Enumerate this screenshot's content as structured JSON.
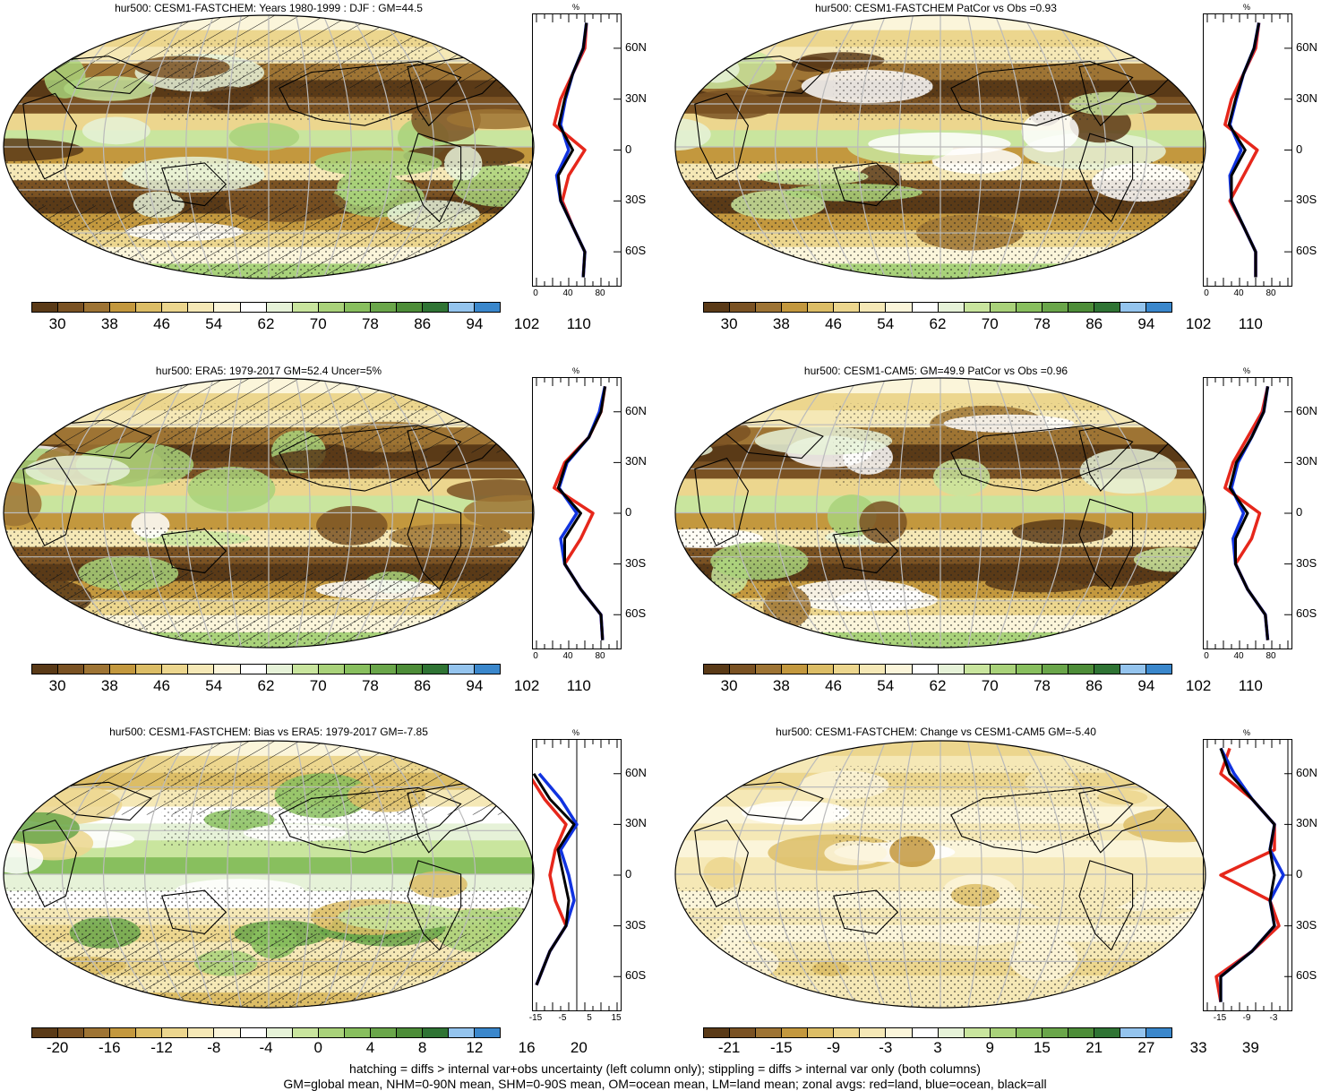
{
  "colors": {
    "abs": [
      "#5a3a17",
      "#7a5223",
      "#9e7434",
      "#c3983e",
      "#dcbd66",
      "#ecd68e",
      "#f5e8b6",
      "#fbf5da",
      "#ffffff",
      "#e6f2d8",
      "#c9e59e",
      "#a9d27a",
      "#88bf5e",
      "#6aa64a",
      "#4d8d38",
      "#2f7434",
      "#94c4ee",
      "#3a87cc"
    ],
    "diff": [
      "#5a3a17",
      "#7a5223",
      "#9e7434",
      "#c3983e",
      "#dcbd66",
      "#ecd68e",
      "#f5e8b6",
      "#fbf5da",
      "#ffffff",
      "#e6f2d8",
      "#c9e59e",
      "#a9d27a",
      "#88bf5e",
      "#6aa64a",
      "#4d8d38",
      "#2f7434",
      "#94c4ee",
      "#3a87cc"
    ],
    "change": [
      "#5a3a17",
      "#7a5223",
      "#9e7434",
      "#c3983e",
      "#dcbd66",
      "#ecd68e",
      "#f5e8b6",
      "#fbf5da",
      "#ffffff",
      "#e6f2d8",
      "#c9e59e",
      "#a9d27a",
      "#88bf5e",
      "#6aa64a",
      "#4d8d38",
      "#2f7434",
      "#94c4ee",
      "#3a87cc"
    ],
    "land": "#e6271b",
    "ocean": "#1133e0",
    "all": "#000000"
  },
  "colorbars": {
    "abs": [
      "30",
      "38",
      "46",
      "54",
      "62",
      "70",
      "78",
      "86",
      "94",
      "102",
      "110"
    ],
    "diff": [
      "-20",
      "-16",
      "-12",
      "-8",
      "-4",
      "0",
      "4",
      "8",
      "12",
      "16",
      "20"
    ],
    "change": [
      "-21",
      "-15",
      "-9",
      "-3",
      "3",
      "9",
      "15",
      "21",
      "27",
      "33",
      "39"
    ]
  },
  "lat_labels": [
    "60N",
    "30N",
    "0",
    "30S",
    "60S"
  ],
  "panels": [
    {
      "id": "p1",
      "title": "hur500: CESM1-FASTCHEM: Years 1980-1999 : DJF : GM=44.5",
      "unit": "%",
      "xticks": [
        "0",
        "40",
        "80"
      ],
      "bar": "abs"
    },
    {
      "id": "p2",
      "title": "hur500: CESM1-FASTCHEM PatCor vs Obs =0.93",
      "unit": "%",
      "xticks": [
        "0",
        "40",
        "80"
      ],
      "bar": "abs"
    },
    {
      "id": "p3",
      "title": "hur500: ERA5: 1979-2017 GM=52.4 Uncer=5%",
      "unit": "%",
      "xticks": [
        "0",
        "40",
        "80"
      ],
      "bar": "abs"
    },
    {
      "id": "p4",
      "title": "hur500: CESM1-CAM5: GM=49.9 PatCor vs Obs =0.96",
      "unit": "%",
      "xticks": [
        "0",
        "40",
        "80"
      ],
      "bar": "abs"
    },
    {
      "id": "p5",
      "title": "hur500: CESM1-FASTCHEM: Bias vs ERA5: 1979-2017 GM=-7.85",
      "unit": "%",
      "xticks": [
        "-15",
        "-5",
        "5",
        "15"
      ],
      "bar": "diff"
    },
    {
      "id": "p6",
      "title": "hur500: CESM1-FASTCHEM: Change vs CESM1-CAM5 GM=-5.40",
      "unit": "%",
      "xticks": [
        "-15",
        "-9",
        "-3"
      ],
      "bar": "change"
    }
  ],
  "footer": {
    "line1": "hatching = diffs > internal var+obs uncertainty (left column only); stippling = diffs > internal var only (both columns)",
    "line2": "GM=global mean, NHM=0-90N mean, SHM=0-90S mean, OM=ocean mean, LM=land mean; zonal avgs: red=land, blue=ocean, black=all"
  },
  "chart_data": [
    {
      "type": "line",
      "title": "hur500: CESM1-FASTCHEM: Years 1980-1999 : DJF : GM=44.5",
      "xlabel": "%",
      "xlim": [
        0,
        100
      ],
      "ylim": [
        -80,
        80
      ],
      "series": [
        {
          "name": "land",
          "y": [
            -75,
            -60,
            -45,
            -30,
            -15,
            0,
            15,
            30,
            45,
            60,
            75
          ],
          "x": [
            58,
            60,
            45,
            32,
            40,
            60,
            22,
            30,
            45,
            60,
            62
          ]
        },
        {
          "name": "ocean",
          "y": [
            -75,
            -60,
            -45,
            -30,
            -15,
            0,
            15,
            30,
            45,
            60,
            75
          ],
          "x": [
            58,
            60,
            45,
            30,
            25,
            40,
            30,
            36,
            45,
            58,
            62
          ]
        },
        {
          "name": "all",
          "y": [
            -75,
            -60,
            -45,
            -30,
            -15,
            0,
            15,
            30,
            45,
            60,
            75
          ],
          "x": [
            58,
            60,
            45,
            30,
            27,
            45,
            28,
            35,
            45,
            58,
            62
          ]
        }
      ]
    },
    {
      "type": "line",
      "title": "hur500: CESM1-FASTCHEM PatCor vs Obs =0.93",
      "xlabel": "%",
      "xlim": [
        0,
        100
      ],
      "ylim": [
        -80,
        80
      ],
      "series": [
        {
          "name": "land",
          "y": [
            -75,
            -60,
            -45,
            -30,
            -15,
            0,
            15,
            30,
            45,
            60,
            75
          ],
          "x": [
            60,
            60,
            45,
            28,
            45,
            62,
            22,
            30,
            45,
            60,
            64
          ]
        },
        {
          "name": "ocean",
          "y": [
            -75,
            -60,
            -45,
            -30,
            -15,
            0,
            15,
            30,
            45,
            60,
            75
          ],
          "x": [
            60,
            60,
            45,
            30,
            28,
            42,
            28,
            36,
            45,
            58,
            64
          ]
        },
        {
          "name": "all",
          "y": [
            -75,
            -60,
            -45,
            -30,
            -15,
            0,
            15,
            30,
            45,
            60,
            75
          ],
          "x": [
            60,
            60,
            45,
            30,
            30,
            47,
            27,
            35,
            45,
            58,
            64
          ]
        }
      ]
    },
    {
      "type": "line",
      "title": "hur500: ERA5: 1979-2017 GM=52.4 Uncer=5%",
      "xlabel": "%",
      "xlim": [
        0,
        100
      ],
      "ylim": [
        -80,
        80
      ],
      "series": [
        {
          "name": "land",
          "y": [
            -75,
            -60,
            -45,
            -30,
            -15,
            0,
            15,
            30,
            45,
            60,
            75
          ],
          "x": [
            82,
            80,
            55,
            35,
            55,
            70,
            22,
            35,
            65,
            80,
            85
          ]
        },
        {
          "name": "ocean",
          "y": [
            -75,
            -60,
            -45,
            -30,
            -15,
            0,
            15,
            30,
            45,
            60,
            75
          ],
          "x": [
            82,
            80,
            55,
            35,
            30,
            50,
            28,
            38,
            65,
            78,
            85
          ]
        },
        {
          "name": "all",
          "y": [
            -75,
            -60,
            -45,
            -30,
            -15,
            0,
            15,
            30,
            45,
            60,
            75
          ],
          "x": [
            82,
            80,
            55,
            35,
            35,
            55,
            27,
            37,
            65,
            80,
            85
          ]
        }
      ]
    },
    {
      "type": "line",
      "title": "hur500: CESM1-CAM5: GM=49.9 PatCor vs Obs =0.96",
      "xlabel": "%",
      "xlim": [
        0,
        100
      ],
      "ylim": [
        -80,
        80
      ],
      "series": [
        {
          "name": "land",
          "y": [
            -75,
            -60,
            -45,
            -30,
            -15,
            0,
            15,
            30,
            45,
            60,
            75
          ],
          "x": [
            75,
            72,
            50,
            35,
            55,
            65,
            22,
            32,
            50,
            68,
            75
          ]
        },
        {
          "name": "ocean",
          "y": [
            -75,
            -60,
            -45,
            -30,
            -15,
            0,
            15,
            30,
            45,
            60,
            75
          ],
          "x": [
            75,
            72,
            50,
            35,
            32,
            45,
            30,
            38,
            55,
            70,
            75
          ]
        },
        {
          "name": "all",
          "y": [
            -75,
            -60,
            -45,
            -30,
            -15,
            0,
            15,
            30,
            45,
            60,
            75
          ],
          "x": [
            75,
            72,
            50,
            35,
            35,
            50,
            28,
            36,
            55,
            70,
            75
          ]
        }
      ]
    },
    {
      "type": "line",
      "title": "hur500: CESM1-FASTCHEM: Bias vs ERA5: 1979-2017 GM=-7.85",
      "xlabel": "%",
      "xlim": [
        -15,
        15
      ],
      "ylim": [
        -80,
        80
      ],
      "series": [
        {
          "name": "land",
          "y": [
            -65,
            -45,
            -30,
            -15,
            0,
            15,
            30,
            45,
            60
          ],
          "x": [
            -15,
            -10,
            -4,
            -8,
            -10,
            -8,
            -4,
            -12,
            -18
          ]
        },
        {
          "name": "ocean",
          "y": [
            -65,
            -45,
            -30,
            -15,
            0,
            15,
            30,
            45,
            60
          ],
          "x": [
            -15,
            -10,
            -4,
            -1,
            -3,
            -6,
            0,
            -6,
            -14
          ]
        },
        {
          "name": "all",
          "y": [
            -65,
            -45,
            -30,
            -15,
            0,
            15,
            30,
            45,
            60
          ],
          "x": [
            -15,
            -10,
            -4,
            -3,
            -5,
            -7,
            -1,
            -10,
            -16
          ]
        }
      ]
    },
    {
      "type": "line",
      "title": "hur500: CESM1-FASTCHEM: Change vs CESM1-CAM5 GM=-5.40",
      "xlabel": "%",
      "xlim": [
        -18,
        0
      ],
      "ylim": [
        -80,
        80
      ],
      "series": [
        {
          "name": "land",
          "y": [
            -75,
            -60,
            -45,
            -30,
            -15,
            0,
            15,
            30,
            45,
            60,
            75
          ],
          "x": [
            -15,
            -16,
            -8,
            -2,
            -4,
            -15,
            -3,
            -3,
            -8,
            -15,
            -13
          ]
        },
        {
          "name": "ocean",
          "y": [
            -75,
            -60,
            -45,
            -30,
            -15,
            0,
            15,
            30,
            45,
            60,
            75
          ],
          "x": [
            -15,
            -15,
            -8,
            -3,
            -4,
            -1,
            -4,
            -3,
            -8,
            -12,
            -15
          ]
        },
        {
          "name": "all",
          "y": [
            -75,
            -60,
            -45,
            -30,
            -15,
            0,
            15,
            30,
            45,
            60,
            75
          ],
          "x": [
            -15,
            -15,
            -8,
            -3,
            -4,
            -3,
            -4,
            -3,
            -8,
            -13,
            -15
          ]
        }
      ]
    }
  ]
}
